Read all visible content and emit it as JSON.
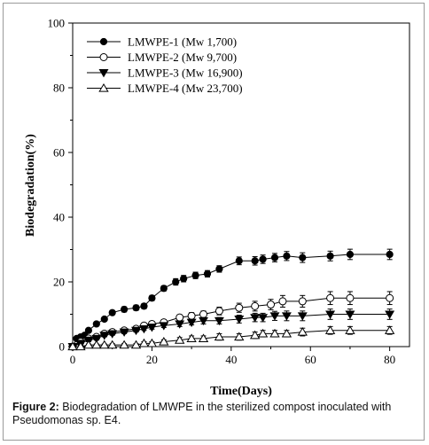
{
  "chart_data": {
    "type": "line",
    "xlabel": "Time(Days)",
    "ylabel": "Biodegradation(%)",
    "xlim": [
      0,
      85
    ],
    "ylim": [
      0,
      100
    ],
    "xticks": [
      "0",
      "20",
      "40",
      "60",
      "80"
    ],
    "yticks": [
      "0",
      "20",
      "40",
      "60",
      "80",
      "100"
    ],
    "legend_position": "top-left",
    "series": [
      {
        "name": "LMWPE-1 (Mw 1,700)",
        "marker": "filled-circle",
        "x": [
          0,
          1,
          2,
          3,
          4,
          6,
          8,
          10,
          13,
          16,
          18,
          20,
          23,
          26,
          28,
          31,
          34,
          37,
          42,
          46,
          48,
          51,
          54,
          58,
          65,
          70,
          80
        ],
        "y": [
          0,
          2.5,
          3,
          3.5,
          5,
          7,
          8.5,
          10.5,
          11.5,
          12,
          12.5,
          15,
          18,
          20,
          21,
          22,
          22.5,
          24,
          26.5,
          26.5,
          27,
          27.5,
          28,
          27.5,
          28,
          28.5,
          28.5
        ],
        "err": [
          0,
          0.5,
          0.5,
          0.5,
          0.5,
          0.5,
          0.5,
          0.5,
          0.8,
          0.8,
          0.8,
          0.8,
          0.8,
          1,
          1,
          1,
          1,
          1,
          1.2,
          1.3,
          1.3,
          1.3,
          1.4,
          1.5,
          1.5,
          1.6,
          1.6
        ]
      },
      {
        "name": "LMWPE-2 (Mw 9,700)",
        "marker": "open-circle",
        "x": [
          0,
          2,
          4,
          6,
          8,
          10,
          13,
          16,
          18,
          20,
          23,
          27,
          30,
          33,
          37,
          42,
          46,
          50,
          53,
          58,
          65,
          70,
          80
        ],
        "y": [
          0,
          1.5,
          2.5,
          3,
          4,
          4.5,
          5,
          5.5,
          6.5,
          7,
          7.5,
          9,
          9.5,
          10,
          11,
          12,
          12.5,
          13,
          14,
          14,
          15,
          15,
          15
        ],
        "err": [
          0,
          0.5,
          0.5,
          0.5,
          0.5,
          0.5,
          0.5,
          0.5,
          0.6,
          0.6,
          0.8,
          0.8,
          1,
          1,
          1.2,
          1.4,
          1.5,
          1.6,
          1.8,
          1.8,
          2,
          2,
          2
        ]
      },
      {
        "name": "LMWPE-3 (Mw 16,900)",
        "marker": "filled-triangle-down",
        "x": [
          0,
          2,
          4,
          6,
          8,
          10,
          13,
          16,
          18,
          20,
          23,
          27,
          30,
          33,
          37,
          42,
          46,
          48,
          51,
          54,
          58,
          65,
          70,
          80
        ],
        "y": [
          0,
          1,
          2,
          2.5,
          3.5,
          4,
          4.5,
          5,
          5.5,
          6,
          6.5,
          7,
          7.5,
          8,
          8,
          8.5,
          9,
          9,
          9.5,
          9.5,
          9.5,
          10,
          10,
          10
        ],
        "err": [
          0,
          0.5,
          0.5,
          0.5,
          0.5,
          0.5,
          0.5,
          0.5,
          0.5,
          0.6,
          0.6,
          0.8,
          0.8,
          1,
          1,
          1.2,
          1.3,
          1.3,
          1.4,
          1.5,
          1.5,
          1.6,
          1.6,
          1.6
        ]
      },
      {
        "name": "LMWPE-4 (Mw 23,700)",
        "marker": "open-triangle-up",
        "x": [
          0,
          2,
          4,
          6,
          8,
          10,
          13,
          16,
          18,
          20,
          23,
          27,
          30,
          33,
          37,
          42,
          46,
          48,
          51,
          54,
          58,
          65,
          70,
          80
        ],
        "y": [
          0,
          0,
          0.5,
          0.5,
          0.5,
          0.5,
          0.5,
          0.5,
          1,
          1,
          1.5,
          2,
          2.5,
          2.5,
          3,
          3,
          3.5,
          4,
          4,
          4,
          4.5,
          5,
          5,
          5
        ],
        "err": [
          0,
          0.3,
          0.3,
          0.3,
          0.3,
          0.4,
          0.4,
          0.4,
          0.5,
          0.5,
          0.6,
          0.8,
          0.8,
          0.8,
          1,
          1,
          1,
          1,
          1,
          1,
          1.2,
          1.2,
          1.2,
          1.2
        ]
      }
    ]
  },
  "caption": {
    "label": "Figure 2:",
    "text": " Biodegradation of LMWPE in the sterilized compost inoculated with Pseudomonas sp. E4."
  }
}
